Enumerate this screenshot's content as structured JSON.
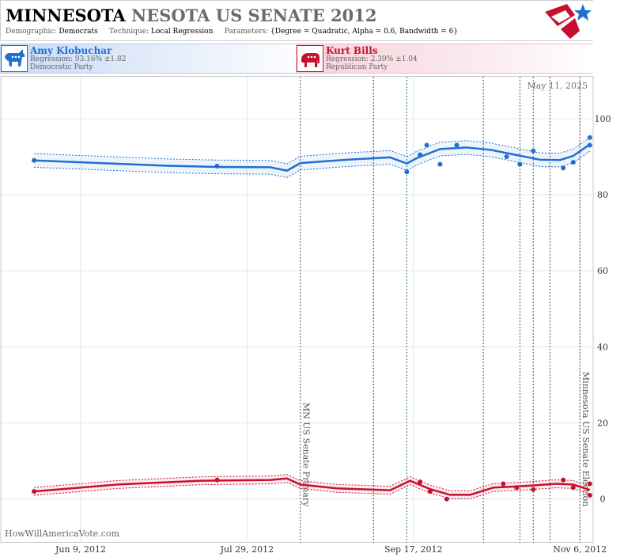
{
  "header": {
    "title_main": "MINNESOTA",
    "title_sub": "NESOTA US SENATE 2012",
    "demographic_label": "Demographic:",
    "demographic_value": "Democrats",
    "technique_label": "Technique:",
    "technique_value": "Local Regression",
    "parameters_label": "Parameters:",
    "parameters_value": "{Degree = Quadratic, Alpha = 0.6, Bandwidth = 6}",
    "logo_icon": "star-flag-logo-icon"
  },
  "candidates": {
    "dem": {
      "name": "Amy Klobuchar",
      "regression": "Regression: 93.16% ±1.82",
      "party": "Democratic Party",
      "icon": "donkey-icon",
      "color": "#1f6fd1"
    },
    "rep": {
      "name": "Kurt Bills",
      "regression": "Regression: 2.39% ±1.04",
      "party": "Republican Party",
      "icon": "elephant-icon",
      "color": "#c8102e"
    }
  },
  "chart_data": {
    "type": "line",
    "date_stamp": "May 11, 2025",
    "watermark": "HowWillAmericaVote.com",
    "x_ticks": [
      {
        "date": "2012-06-09",
        "label": "Jun 9, 2012"
      },
      {
        "date": "2012-07-29",
        "label": "Jul 29, 2012"
      },
      {
        "date": "2012-09-17",
        "label": "Sep 17, 2012"
      },
      {
        "date": "2012-11-06",
        "label": "Nov 6, 2012"
      }
    ],
    "xlim": [
      "2012-05-16",
      "2012-11-10"
    ],
    "ylim": [
      -11.5,
      111
    ],
    "y_ticks": [
      0,
      20,
      40,
      60,
      80,
      100
    ],
    "grid": true,
    "events": [
      {
        "date": "2012-08-14",
        "label": "MN US Senate Primary",
        "color": "#555555"
      },
      {
        "date": "2012-09-05",
        "label": "",
        "color": "#8b1a3a"
      },
      {
        "date": "2012-09-15",
        "label": "",
        "color": "#1f6f8b"
      },
      {
        "date": "2012-10-08",
        "label": "",
        "color": "#555555"
      },
      {
        "date": "2012-10-19",
        "label": "",
        "color": "#555555"
      },
      {
        "date": "2012-10-23",
        "label": "",
        "color": "#555555"
      },
      {
        "date": "2012-10-28",
        "label": "",
        "color": "#555555"
      },
      {
        "date": "2012-11-06",
        "label": "Minnesota US Senate Election",
        "color": "#555555"
      }
    ],
    "series": [
      {
        "name": "Amy Klobuchar",
        "color": "#1f6fd1",
        "points": [
          {
            "date": "2012-05-26",
            "y": 89
          },
          {
            "date": "2012-07-20",
            "y": 87.5
          },
          {
            "date": "2012-09-15",
            "y": 86
          },
          {
            "date": "2012-09-19",
            "y": 90.5
          },
          {
            "date": "2012-09-21",
            "y": 93
          },
          {
            "date": "2012-09-25",
            "y": 88
          },
          {
            "date": "2012-09-30",
            "y": 93
          },
          {
            "date": "2012-10-15",
            "y": 90
          },
          {
            "date": "2012-10-19",
            "y": 88
          },
          {
            "date": "2012-10-23",
            "y": 91.5
          },
          {
            "date": "2012-11-01",
            "y": 87
          },
          {
            "date": "2012-11-04",
            "y": 88.5
          },
          {
            "date": "2012-11-09",
            "y": 95
          },
          {
            "date": "2012-11-09",
            "y": 93
          }
        ],
        "trend": [
          {
            "date": "2012-05-26",
            "y": 89
          },
          {
            "date": "2012-06-15",
            "y": 88.3
          },
          {
            "date": "2012-07-05",
            "y": 87.6
          },
          {
            "date": "2012-07-20",
            "y": 87.3
          },
          {
            "date": "2012-08-05",
            "y": 87.2
          },
          {
            "date": "2012-08-10",
            "y": 86.3
          },
          {
            "date": "2012-08-14",
            "y": 88.3
          },
          {
            "date": "2012-08-28",
            "y": 89.2
          },
          {
            "date": "2012-09-10",
            "y": 89.8
          },
          {
            "date": "2012-09-15",
            "y": 88.2
          },
          {
            "date": "2012-09-18",
            "y": 89.6
          },
          {
            "date": "2012-09-25",
            "y": 92
          },
          {
            "date": "2012-10-03",
            "y": 92.4
          },
          {
            "date": "2012-10-10",
            "y": 91.8
          },
          {
            "date": "2012-10-17",
            "y": 90.6
          },
          {
            "date": "2012-10-25",
            "y": 89.2
          },
          {
            "date": "2012-10-31",
            "y": 89.1
          },
          {
            "date": "2012-11-04",
            "y": 90.2
          },
          {
            "date": "2012-11-09",
            "y": 93.2
          }
        ],
        "band_width": 1.8
      },
      {
        "name": "Kurt Bills",
        "color": "#c8102e",
        "points": [
          {
            "date": "2012-05-26",
            "y": 2
          },
          {
            "date": "2012-07-20",
            "y": 5
          },
          {
            "date": "2012-09-19",
            "y": 4.5
          },
          {
            "date": "2012-09-22",
            "y": 2
          },
          {
            "date": "2012-09-27",
            "y": 0
          },
          {
            "date": "2012-10-14",
            "y": 4
          },
          {
            "date": "2012-10-18",
            "y": 3
          },
          {
            "date": "2012-10-23",
            "y": 2.5
          },
          {
            "date": "2012-11-01",
            "y": 5
          },
          {
            "date": "2012-11-04",
            "y": 3
          },
          {
            "date": "2012-11-09",
            "y": 4
          },
          {
            "date": "2012-11-09",
            "y": 1
          }
        ],
        "trend": [
          {
            "date": "2012-05-26",
            "y": 2
          },
          {
            "date": "2012-06-20",
            "y": 3.8
          },
          {
            "date": "2012-07-15",
            "y": 4.8
          },
          {
            "date": "2012-08-05",
            "y": 5
          },
          {
            "date": "2012-08-10",
            "y": 5.4
          },
          {
            "date": "2012-08-14",
            "y": 3.8
          },
          {
            "date": "2012-08-25",
            "y": 2.8
          },
          {
            "date": "2012-09-10",
            "y": 2.3
          },
          {
            "date": "2012-09-16",
            "y": 4.8
          },
          {
            "date": "2012-09-22",
            "y": 2.6
          },
          {
            "date": "2012-09-28",
            "y": 1.1
          },
          {
            "date": "2012-10-04",
            "y": 1.1
          },
          {
            "date": "2012-10-11",
            "y": 3
          },
          {
            "date": "2012-10-20",
            "y": 3.4
          },
          {
            "date": "2012-10-30",
            "y": 4
          },
          {
            "date": "2012-11-04",
            "y": 3.8
          },
          {
            "date": "2012-11-09",
            "y": 2.4
          }
        ],
        "band_width": 1.04
      }
    ]
  }
}
